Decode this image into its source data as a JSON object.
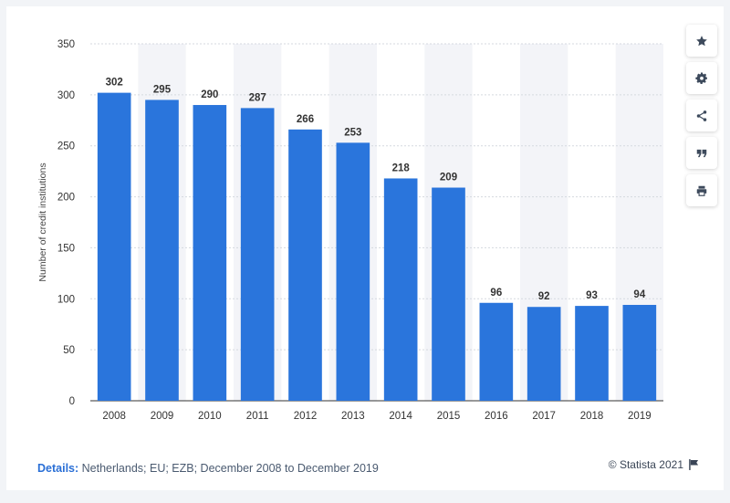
{
  "chart_data": {
    "type": "bar",
    "categories": [
      "2008",
      "2009",
      "2010",
      "2011",
      "2012",
      "2013",
      "2014",
      "2015",
      "2016",
      "2017",
      "2018",
      "2019"
    ],
    "values": [
      302,
      295,
      290,
      287,
      266,
      253,
      218,
      209,
      96,
      92,
      93,
      94
    ],
    "ylabel": "Number of credit institutions",
    "xlabel": "",
    "ylim": [
      0,
      350
    ],
    "yticks": [
      0,
      50,
      100,
      150,
      200,
      250,
      300,
      350
    ],
    "grid": true,
    "bar_color": "#2a75dc",
    "stripe_color": "#f3f4f8",
    "data_labels": true
  },
  "footer": {
    "details_label": "Details:",
    "details_text": "Netherlands; EU; EZB; December 2008 to December 2019",
    "credit": "© Statista 2021"
  },
  "toolbar": {
    "icons": [
      "star-icon",
      "gear-icon",
      "share-icon",
      "quote-icon",
      "print-icon"
    ],
    "icon_color": "#3d4a5c"
  }
}
